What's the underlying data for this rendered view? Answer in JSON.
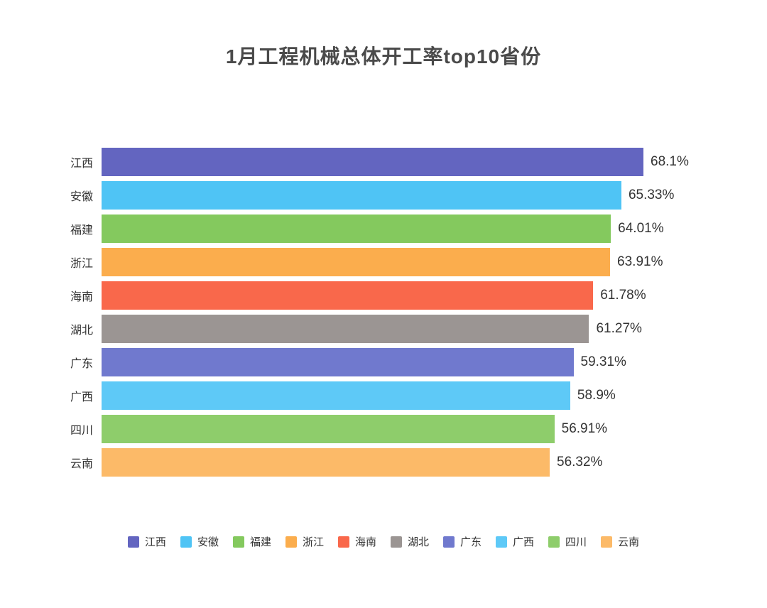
{
  "title": "1月工程机械总体开工率top10省份",
  "chart_data": {
    "type": "bar",
    "orientation": "horizontal",
    "title": "1月工程机械总体开工率top10省份",
    "categories": [
      "江西",
      "安徽",
      "福建",
      "浙江",
      "海南",
      "湖北",
      "广东",
      "广西",
      "四川",
      "云南"
    ],
    "values": [
      68.1,
      65.33,
      64.01,
      63.91,
      61.78,
      61.27,
      59.31,
      58.9,
      56.91,
      56.32
    ],
    "value_labels": [
      "68.1%",
      "65.33%",
      "64.01%",
      "63.91%",
      "61.78%",
      "61.27%",
      "59.31%",
      "58.9%",
      "56.91%",
      "56.32%"
    ],
    "colors": [
      "#6365c0",
      "#4fc4f5",
      "#84c95e",
      "#fbad4d",
      "#f9684b",
      "#9b9593",
      "#7079ce",
      "#5ec9f7",
      "#8ecd6b",
      "#fcba68"
    ],
    "xlim": [
      0,
      70
    ],
    "grid": false,
    "legend": [
      "江西",
      "安徽",
      "福建",
      "浙江",
      "海南",
      "湖北",
      "广东",
      "广西",
      "四川",
      "云南"
    ],
    "legend_position": "bottom"
  }
}
